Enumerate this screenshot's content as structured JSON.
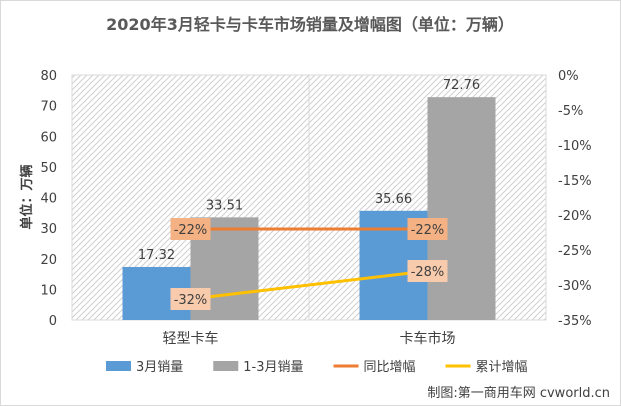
{
  "chart_data": {
    "type": "bar",
    "title": "2020年3月轻卡与卡车市场销量及增幅图（单位：万辆）",
    "ylabel": "单位：万辆",
    "categories": [
      "轻型卡车",
      "卡车市场"
    ],
    "ylim": [
      0,
      80
    ],
    "y_ticks": [
      "0",
      "10",
      "20",
      "30",
      "40",
      "50",
      "60",
      "70",
      "80"
    ],
    "y2lim": [
      -35,
      0
    ],
    "y2_ticks": [
      "0%",
      "-5%",
      "-10%",
      "-15%",
      "-20%",
      "-25%",
      "-30%",
      "-35%"
    ],
    "series": [
      {
        "name": "3月销量",
        "kind": "bar",
        "axis": "left",
        "color": "#5b9bd5",
        "values": [
          17.32,
          35.66
        ],
        "labels": [
          "17.32",
          "35.66"
        ]
      },
      {
        "name": "1-3月销量",
        "kind": "bar",
        "axis": "left",
        "color": "#a5a5a5",
        "values": [
          33.51,
          72.76
        ],
        "labels": [
          "33.51",
          "72.76"
        ]
      },
      {
        "name": "同比增幅",
        "kind": "line",
        "axis": "right",
        "color": "#ed7d31",
        "label_bg": "#f4b183",
        "values": [
          -22,
          -22
        ],
        "labels": [
          "-22%",
          "-22%"
        ]
      },
      {
        "name": "累计增幅",
        "kind": "line",
        "axis": "right",
        "color": "#ffc000",
        "label_bg": "#f8cbad",
        "values": [
          -32,
          -28
        ],
        "labels": [
          "-32%",
          "-28%"
        ]
      }
    ],
    "grid": true,
    "legend": "bottom"
  },
  "source": "制图:第一商用车网 cvworld.cn"
}
